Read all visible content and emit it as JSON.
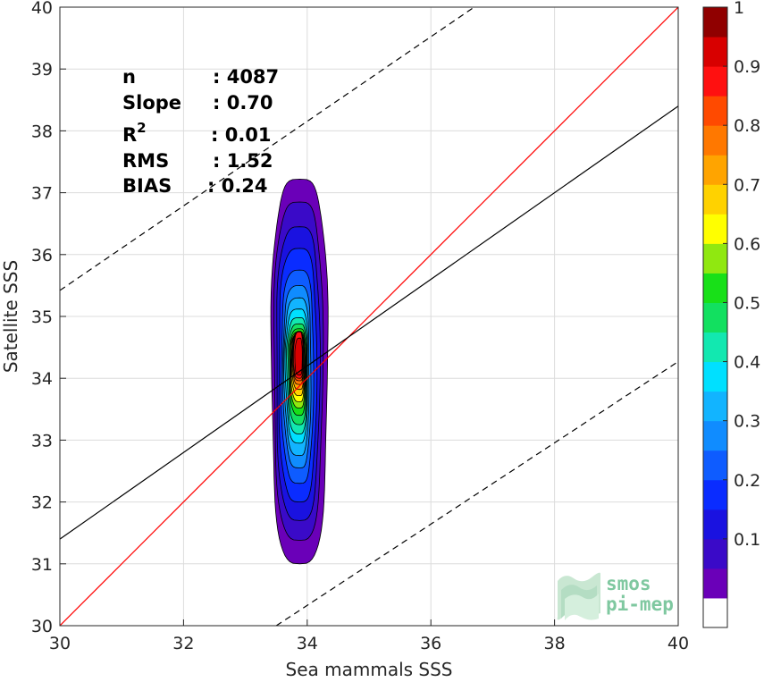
{
  "chart_data": {
    "type": "heatmap",
    "xlabel": "Sea mammals SSS",
    "ylabel": "Satellite SSS",
    "xlim": [
      30,
      40
    ],
    "ylim": [
      30,
      40
    ],
    "x_ticks": [
      "30",
      "32",
      "34",
      "36",
      "38",
      "40"
    ],
    "y_ticks": [
      "30",
      "31",
      "32",
      "33",
      "34",
      "35",
      "36",
      "37",
      "38",
      "39",
      "40"
    ],
    "grid": true,
    "stats": [
      {
        "label": "n",
        "value": ": 4087"
      },
      {
        "label": "Slope",
        "value": ": 0.70"
      },
      {
        "label": "R",
        "label_sup": "2",
        "value": ": 0.01"
      },
      {
        "label": "RMS",
        "value": ": 1.52"
      },
      {
        "label": "BIAS",
        "value": ": 0.24"
      }
    ],
    "lines": [
      {
        "kind": "one-to-one",
        "color": "#ff0000",
        "style": "solid",
        "points": [
          [
            30,
            30
          ],
          [
            40,
            40
          ]
        ]
      },
      {
        "kind": "regression",
        "color": "#000000",
        "style": "solid",
        "points": [
          [
            30,
            31.4
          ],
          [
            40,
            38.4
          ]
        ]
      },
      {
        "kind": "upper-bound",
        "color": "#000000",
        "style": "dashed",
        "points": [
          [
            30,
            35.42
          ],
          [
            36.7,
            40
          ]
        ]
      },
      {
        "kind": "lower-bound",
        "color": "#000000",
        "style": "dashed",
        "points": [
          [
            33.5,
            30
          ],
          [
            40,
            34.27
          ]
        ]
      }
    ],
    "density_center": {
      "x": 33.88,
      "y": 34.3
    },
    "contour_levels": [
      0.05,
      0.1,
      0.15,
      0.2,
      0.25,
      0.3,
      0.35,
      0.4,
      0.45,
      0.5,
      0.55,
      0.6,
      0.65,
      0.7,
      0.75,
      0.8,
      0.85,
      0.9,
      0.95
    ],
    "contour_extents": [
      {
        "level": 0.05,
        "x": [
          33.42,
          34.33
        ],
        "y": [
          31.0,
          37.22
        ]
      },
      {
        "level": 0.1,
        "x": [
          33.46,
          34.25
        ],
        "y": [
          31.38,
          36.85
        ]
      },
      {
        "level": 0.15,
        "x": [
          33.5,
          34.2
        ],
        "y": [
          31.7,
          36.45
        ]
      },
      {
        "level": 0.2,
        "x": [
          33.54,
          34.15
        ],
        "y": [
          32.0,
          36.1
        ]
      },
      {
        "level": 0.25,
        "x": [
          33.58,
          34.1
        ],
        "y": [
          32.3,
          35.75
        ]
      },
      {
        "level": 0.3,
        "x": [
          33.61,
          34.06
        ],
        "y": [
          32.55,
          35.5
        ]
      },
      {
        "level": 0.35,
        "x": [
          33.63,
          34.03
        ],
        "y": [
          32.75,
          35.3
        ]
      },
      {
        "level": 0.4,
        "x": [
          33.65,
          34.01
        ],
        "y": [
          32.95,
          35.12
        ]
      },
      {
        "level": 0.45,
        "x": [
          33.67,
          34.0
        ],
        "y": [
          33.1,
          34.98
        ]
      },
      {
        "level": 0.5,
        "x": [
          33.69,
          33.99
        ],
        "y": [
          33.25,
          34.88
        ]
      },
      {
        "level": 0.55,
        "x": [
          33.71,
          33.98
        ],
        "y": [
          33.4,
          34.8
        ]
      },
      {
        "level": 0.6,
        "x": [
          33.72,
          33.97
        ],
        "y": [
          33.52,
          34.75
        ]
      },
      {
        "level": 0.65,
        "x": [
          33.73,
          33.96
        ],
        "y": [
          33.62,
          34.72
        ]
      },
      {
        "level": 0.7,
        "x": [
          33.74,
          33.95
        ],
        "y": [
          33.72,
          34.72
        ]
      },
      {
        "level": 0.75,
        "x": [
          33.75,
          33.95
        ],
        "y": [
          33.82,
          34.74
        ]
      },
      {
        "level": 0.8,
        "x": [
          33.76,
          33.94
        ],
        "y": [
          33.9,
          34.75
        ]
      },
      {
        "level": 0.85,
        "x": [
          33.77,
          33.94
        ],
        "y": [
          33.96,
          34.76
        ]
      },
      {
        "level": 0.9,
        "x": [
          33.78,
          33.93
        ],
        "y": [
          34.0,
          34.75
        ]
      },
      {
        "level": 0.95,
        "x": [
          33.8,
          33.92
        ],
        "y": [
          34.05,
          34.65
        ]
      }
    ],
    "colorbar": {
      "range": [
        0,
        1
      ],
      "tick_labels": [
        "0.1",
        "0.2",
        "0.3",
        "0.4",
        "0.5",
        "0.6",
        "0.7",
        "0.8",
        "0.9",
        "1"
      ],
      "tick_values": [
        0.1,
        0.2,
        0.3,
        0.4,
        0.5,
        0.6,
        0.7,
        0.8,
        0.9,
        1.0
      ],
      "colors": [
        "#ffffff",
        "#6a00b8",
        "#3a0ac8",
        "#1a12e0",
        "#0a2cff",
        "#0e5cff",
        "#108cff",
        "#12b4ff",
        "#00e0ff",
        "#12e8b0",
        "#12e060",
        "#18e018",
        "#90e810",
        "#ffff00",
        "#ffd200",
        "#ffa400",
        "#ff7800",
        "#ff4a00",
        "#ff1010",
        "#d80000",
        "#900000"
      ]
    },
    "logo_lines": [
      "smos",
      "pi-mep"
    ]
  }
}
